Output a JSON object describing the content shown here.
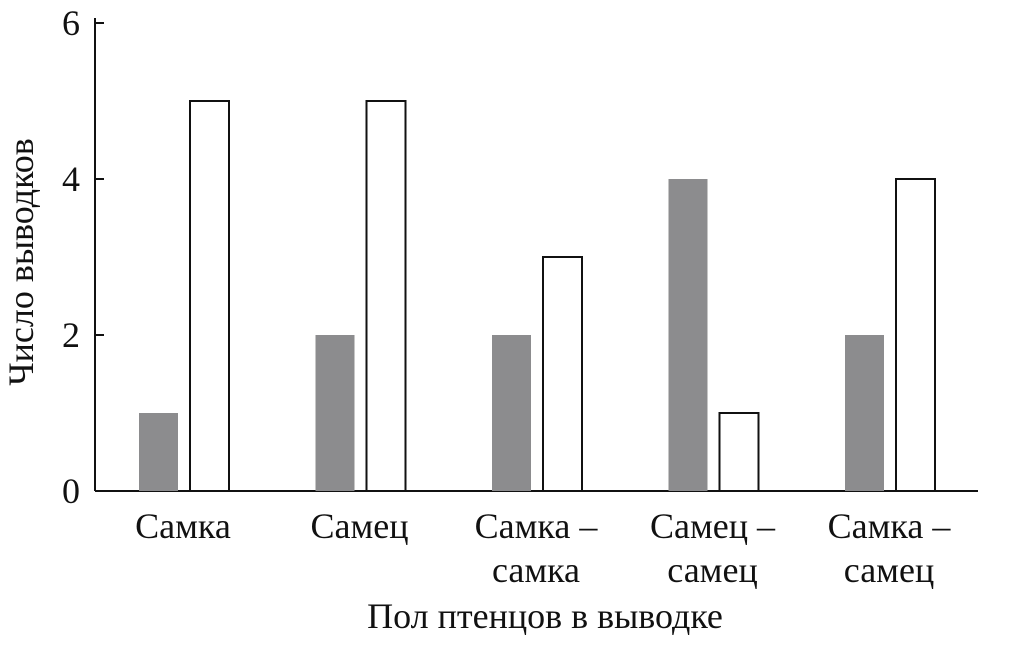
{
  "chart_data": {
    "type": "bar",
    "title": "",
    "xlabel": "Пол птенцов в выводке",
    "ylabel": "Число выводков",
    "ylim": [
      0,
      6
    ],
    "yticks": [
      "0",
      "2",
      "4",
      "6"
    ],
    "categories": [
      [
        "Самка"
      ],
      [
        "Самец"
      ],
      [
        "Самка –",
        "самка"
      ],
      [
        "Самец –",
        "самец"
      ],
      [
        "Самка –",
        "самец"
      ]
    ],
    "series": [
      {
        "name": "",
        "color": "#8c8c8e",
        "outline": false,
        "values": [
          1,
          2,
          2,
          4,
          2
        ]
      },
      {
        "name": "",
        "color": "#ffffff",
        "outline": true,
        "values": [
          5,
          5,
          3,
          1,
          4
        ]
      }
    ],
    "grid": false,
    "legend": "none"
  }
}
